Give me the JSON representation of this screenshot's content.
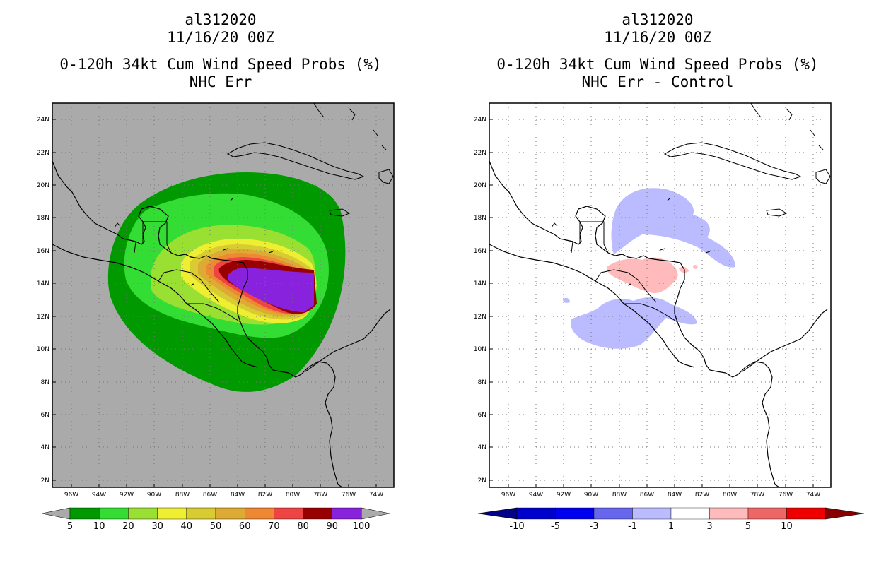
{
  "left_panel": {
    "storm_id": "al312020",
    "datetime": "11/16/20 00Z",
    "product": "0-120h 34kt Cum Wind Speed Probs (%)",
    "subtitle": "NHC Err",
    "colorbar": {
      "labels": [
        "5",
        "10",
        "20",
        "30",
        "40",
        "50",
        "60",
        "70",
        "80",
        "90",
        "100"
      ],
      "colors": [
        "#009900",
        "#33dd33",
        "#99e033",
        "#eeee33",
        "#d9cc33",
        "#ddaa33",
        "#ee8833",
        "#ee4444",
        "#990000",
        "#8822dd"
      ],
      "over_under_color": "#aaaaaa"
    }
  },
  "right_panel": {
    "storm_id": "al312020",
    "datetime": "11/16/20 00Z",
    "product": "0-120h 34kt Cum Wind Speed Probs (%)",
    "subtitle": "NHC Err - Control",
    "colorbar": {
      "labels": [
        "-10",
        "-5",
        "-3",
        "-1",
        "1",
        "3",
        "5",
        "10"
      ],
      "colors": [
        "#0000cc",
        "#0000ee",
        "#6666ee",
        "#bbbbff",
        "#ffffff",
        "#ffbbbb",
        "#ee6666",
        "#ee0000"
      ],
      "under_color": "#000088",
      "over_color": "#880000"
    }
  },
  "axes": {
    "lat_labels": [
      "24N",
      "22N",
      "20N",
      "18N",
      "16N",
      "14N",
      "12N",
      "10N",
      "8N",
      "6N",
      "4N",
      "2N"
    ],
    "lon_labels": [
      "96W",
      "94W",
      "92W",
      "90W",
      "88W",
      "86W",
      "84W",
      "82W",
      "80W",
      "78W",
      "76W",
      "74W"
    ]
  }
}
